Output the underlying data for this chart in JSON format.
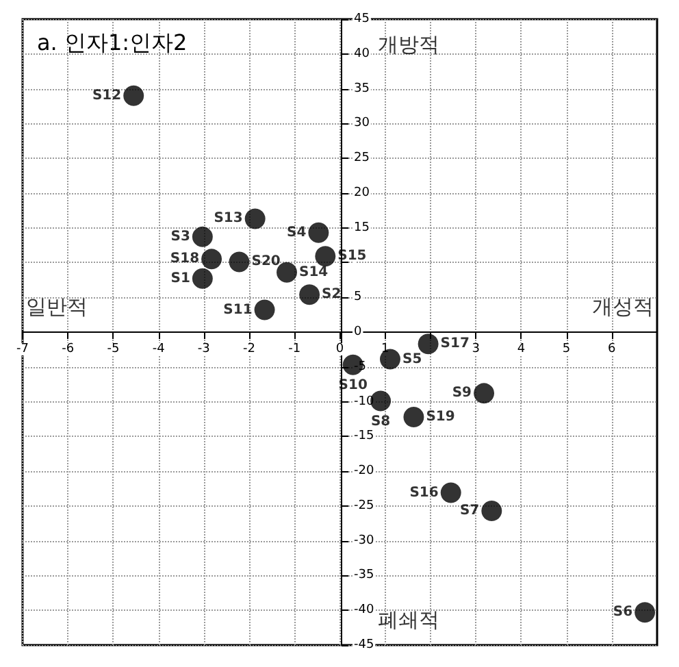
{
  "chart_data": {
    "type": "scatter",
    "title": "a. 인자1:인자2",
    "x": [
      -4.55,
      -1.87,
      -3.03,
      -0.47,
      -2.83,
      -2.22,
      -0.32,
      -3.03,
      -1.17,
      -0.67,
      -1.66,
      1.95,
      1.11,
      0.29,
      0.9,
      1.63,
      3.18,
      2.45,
      3.35,
      6.73
    ],
    "values": [
      34,
      16.3,
      13.7,
      14.3,
      10.5,
      10.1,
      10.9,
      7.7,
      8.6,
      5.4,
      3.2,
      -1.7,
      -3.9,
      -4.7,
      -9.9,
      -12.2,
      -8.8,
      -23.1,
      -25.7,
      -40.3
    ],
    "color": "#000000",
    "marker": "circle",
    "grid": true,
    "xlim": [
      -7,
      7
    ],
    "xticks": [
      -7,
      -6,
      -5,
      -4,
      -3,
      -2,
      -1,
      0,
      1,
      {
        "value": 2,
        "label": null
      },
      3,
      4,
      5,
      6
    ],
    "ylim": [
      -45,
      45
    ],
    "yticks": [
      -45,
      -40,
      -35,
      -30,
      -25,
      -20,
      -15,
      -10,
      -5,
      0,
      5,
      {
        "value": 10,
        "label": null
      },
      15,
      20,
      25,
      30,
      35,
      40,
      45
    ],
    "annotations": [
      {
        "text": "S12",
        "x": -4.55,
        "y": 34
      },
      {
        "text": "S13",
        "x": -1.87,
        "y": 16.3
      },
      {
        "text": "S3",
        "x": -3.03,
        "y": 13.7
      },
      {
        "text": "S4",
        "x": -0.47,
        "y": 14.3
      },
      {
        "text": "S18",
        "x": -2.83,
        "y": 10.5
      },
      {
        "text": "S20",
        "x": -2.22,
        "y": 10.1
      },
      {
        "text": "S15",
        "x": -0.32,
        "y": 10.9
      },
      {
        "text": "S1",
        "x": -3.03,
        "y": 7.7
      },
      {
        "text": "S14",
        "x": -1.17,
        "y": 8.6
      },
      {
        "text": "S2",
        "x": -0.67,
        "y": 5.4
      },
      {
        "text": "S11",
        "x": -1.66,
        "y": 3.2
      },
      {
        "text": "S17",
        "x": 1.95,
        "y": -1.7
      },
      {
        "text": "S5",
        "x": 1.11,
        "y": -3.9
      },
      {
        "text": "S10",
        "x": 0.29,
        "y": -4.7
      },
      {
        "text": "S8",
        "x": 0.9,
        "y": -9.9
      },
      {
        "text": "S19",
        "x": 1.63,
        "y": -12.2
      },
      {
        "text": "S9",
        "x": 3.18,
        "y": -8.8
      },
      {
        "text": "S16",
        "x": 2.45,
        "y": -23.1
      },
      {
        "text": "S7",
        "x": 3.35,
        "y": -25.7
      },
      {
        "text": "S6",
        "x": 6.73,
        "y": -40.3
      },
      "개방적",
      "일반적",
      "개성적",
      "폐쇄적"
    ]
  }
}
